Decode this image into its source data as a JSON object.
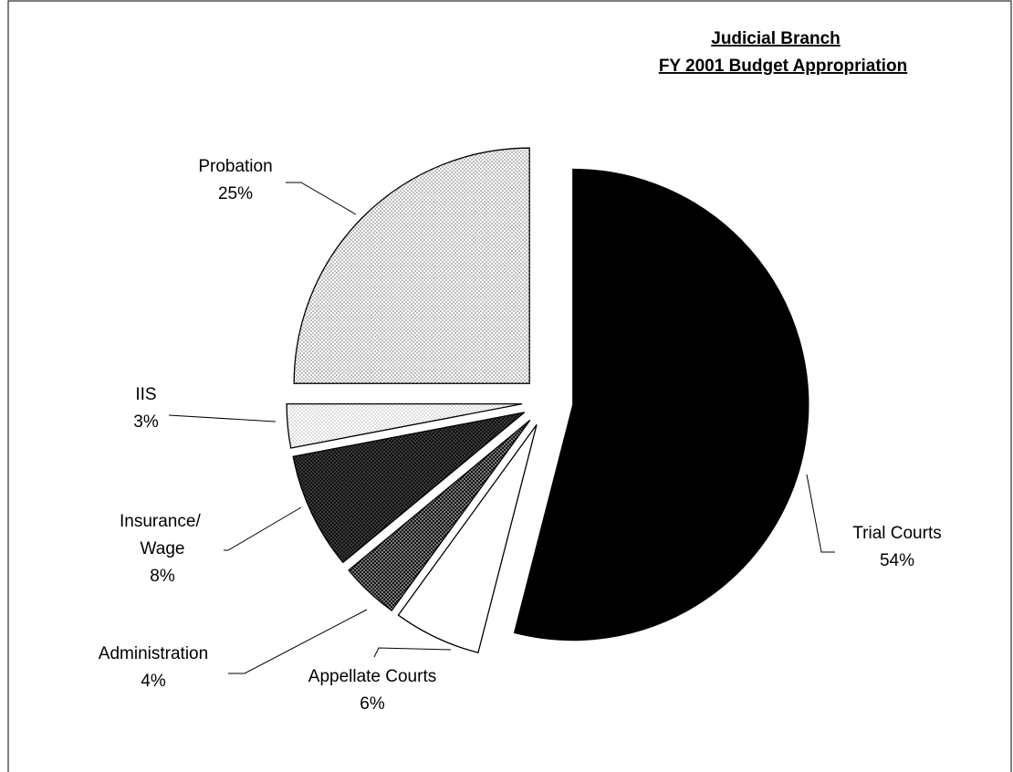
{
  "chart_data": {
    "type": "pie",
    "title": "Judicial Branch",
    "subtitle": "FY 2001 Budget Appropriation",
    "categories": [
      "Trial Courts",
      "Appellate Courts",
      "Administration",
      "Insurance/ Wage",
      "IIS",
      "Probation"
    ],
    "values": [
      54,
      6,
      4,
      8,
      3,
      25
    ],
    "value_labels": [
      "54%",
      "6%",
      "4%",
      "8%",
      "3%",
      "25%"
    ],
    "colors": [
      "#000000",
      "#ffffff",
      "#7a7a7a",
      "#3a3a3a",
      "#dcdcdc",
      "#bdbdbd"
    ]
  }
}
